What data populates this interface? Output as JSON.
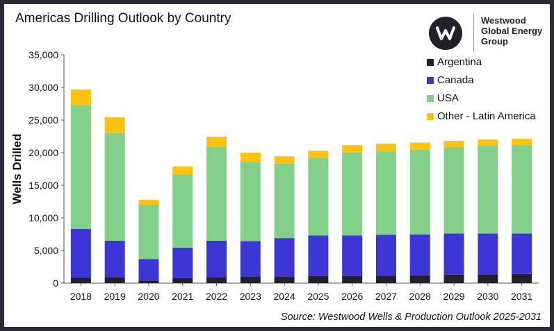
{
  "header": {
    "title": "Americas Drilling Outlook by Country",
    "logo_line1": "Westwood",
    "logo_line2": "Global Energy",
    "logo_line3": "Group",
    "logo_icon": "westwood-w-mark-icon"
  },
  "footer": {
    "source": "Source: Westwood Wells & Production Outlook 2025-2031"
  },
  "chart_data": {
    "type": "bar",
    "stacked": true,
    "title": "Americas Drilling Outlook by Country",
    "xlabel": "",
    "ylabel": "Wells Drilled",
    "ylim": [
      0,
      35000
    ],
    "yticks": [
      0,
      5000,
      10000,
      15000,
      20000,
      25000,
      30000,
      35000
    ],
    "ytick_labels": [
      "0",
      "5,000",
      "10,000",
      "15,000",
      "20,000",
      "25,000",
      "30,000",
      "35,000"
    ],
    "grid": false,
    "legend_position": "top-right",
    "categories": [
      "2018",
      "2019",
      "2020",
      "2021",
      "2022",
      "2023",
      "2024",
      "2025",
      "2026",
      "2027",
      "2028",
      "2029",
      "2030",
      "2031"
    ],
    "series": [
      {
        "name": "Argentina",
        "color": "#22212b",
        "values": [
          800,
          850,
          400,
          750,
          850,
          1000,
          1000,
          1100,
          1100,
          1150,
          1200,
          1300,
          1350,
          1400
        ]
      },
      {
        "name": "Canada",
        "color": "#3d36d6",
        "values": [
          7500,
          5650,
          3300,
          4700,
          5650,
          5450,
          5900,
          6200,
          6200,
          6250,
          6250,
          6300,
          6250,
          6200
        ]
      },
      {
        "name": "USA",
        "color": "#82d08a",
        "values": [
          19000,
          16500,
          8300,
          11200,
          14400,
          12100,
          11400,
          11900,
          12700,
          12800,
          13000,
          13200,
          13500,
          13600
        ]
      },
      {
        "name": "Other - Latin America",
        "color": "#ffc20e",
        "values": [
          2400,
          2450,
          800,
          1250,
          1550,
          1450,
          1150,
          1100,
          1150,
          1200,
          1100,
          1000,
          950,
          950
        ]
      }
    ]
  }
}
